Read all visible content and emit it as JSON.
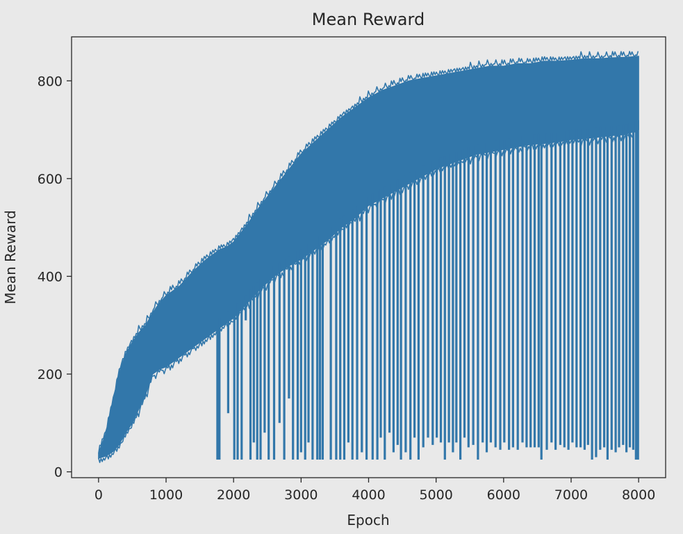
{
  "chart_data": {
    "type": "line",
    "title": "Mean Reward",
    "xlabel": "Epoch",
    "ylabel": "Mean Reward",
    "xlim": [
      -400,
      8400
    ],
    "ylim": [
      -12,
      890
    ],
    "grid": false,
    "legend": "none",
    "xticks": [
      0,
      1000,
      2000,
      3000,
      4000,
      5000,
      6000,
      7000,
      8000
    ],
    "yticks": [
      0,
      200,
      400,
      600,
      800
    ],
    "series": [
      {
        "color": "#3277aa",
        "x": [
          0,
          100,
          200,
          300,
          400,
          500,
          600,
          700,
          800,
          900,
          1000,
          1200,
          1400,
          1600,
          1700,
          1800,
          1900,
          2000,
          2200,
          2400,
          2600,
          2800,
          3000,
          3200,
          3400,
          3600,
          3800,
          4000,
          4200,
          4400,
          4600,
          4800,
          5000,
          5200,
          5400,
          5600,
          5800,
          6000,
          6200,
          6400,
          6600,
          6800,
          7000,
          7200,
          7400,
          7600,
          7800,
          8000
        ],
        "upper": [
          38,
          75,
          135,
          200,
          240,
          265,
          285,
          300,
          325,
          345,
          360,
          380,
          410,
          435,
          445,
          455,
          460,
          470,
          505,
          545,
          580,
          615,
          650,
          675,
          700,
          725,
          745,
          765,
          780,
          790,
          800,
          805,
          810,
          815,
          820,
          825,
          830,
          830,
          835,
          835,
          840,
          840,
          842,
          845,
          845,
          847,
          848,
          850
        ],
        "lower": [
          28,
          32,
          40,
          55,
          80,
          100,
          130,
          160,
          200,
          210,
          215,
          235,
          255,
          275,
          285,
          295,
          305,
          315,
          345,
          375,
          400,
          420,
          435,
          455,
          475,
          500,
          520,
          545,
          560,
          575,
          590,
          605,
          620,
          630,
          640,
          650,
          655,
          660,
          665,
          670,
          672,
          675,
          680,
          682,
          685,
          688,
          690,
          700
        ],
        "drops": [
          [
            1760,
            25
          ],
          [
            1790,
            25
          ],
          [
            1920,
            120
          ],
          [
            2010,
            25
          ],
          [
            2060,
            25
          ],
          [
            2120,
            25
          ],
          [
            2180,
            310
          ],
          [
            2250,
            25
          ],
          [
            2300,
            60
          ],
          [
            2350,
            25
          ],
          [
            2400,
            25
          ],
          [
            2460,
            80
          ],
          [
            2520,
            25
          ],
          [
            2600,
            25
          ],
          [
            2680,
            100
          ],
          [
            2750,
            25
          ],
          [
            2820,
            150
          ],
          [
            2880,
            25
          ],
          [
            2950,
            25
          ],
          [
            3000,
            40
          ],
          [
            3060,
            25
          ],
          [
            3110,
            60
          ],
          [
            3170,
            25
          ],
          [
            3240,
            25
          ],
          [
            3280,
            25
          ],
          [
            3320,
            25
          ],
          [
            3440,
            25
          ],
          [
            3520,
            25
          ],
          [
            3580,
            25
          ],
          [
            3640,
            25
          ],
          [
            3700,
            60
          ],
          [
            3760,
            25
          ],
          [
            3830,
            25
          ],
          [
            3900,
            40
          ],
          [
            3970,
            25
          ],
          [
            4060,
            25
          ],
          [
            4130,
            25
          ],
          [
            4180,
            70
          ],
          [
            4240,
            25
          ],
          [
            4310,
            80
          ],
          [
            4370,
            40
          ],
          [
            4430,
            55
          ],
          [
            4480,
            25
          ],
          [
            4550,
            40
          ],
          [
            4620,
            25
          ],
          [
            4680,
            70
          ],
          [
            4740,
            25
          ],
          [
            4810,
            50
          ],
          [
            4880,
            70
          ],
          [
            4950,
            55
          ],
          [
            5010,
            70
          ],
          [
            5070,
            60
          ],
          [
            5130,
            25
          ],
          [
            5190,
            60
          ],
          [
            5250,
            40
          ],
          [
            5300,
            60
          ],
          [
            5360,
            25
          ],
          [
            5420,
            70
          ],
          [
            5480,
            50
          ],
          [
            5550,
            55
          ],
          [
            5620,
            25
          ],
          [
            5690,
            60
          ],
          [
            5750,
            40
          ],
          [
            5810,
            60
          ],
          [
            5880,
            50
          ],
          [
            5950,
            45
          ],
          [
            6010,
            60
          ],
          [
            6080,
            45
          ],
          [
            6140,
            50
          ],
          [
            6210,
            45
          ],
          [
            6280,
            60
          ],
          [
            6340,
            50
          ],
          [
            6400,
            50
          ],
          [
            6460,
            50
          ],
          [
            6520,
            50
          ],
          [
            6560,
            25
          ],
          [
            6640,
            45
          ],
          [
            6710,
            60
          ],
          [
            6770,
            45
          ],
          [
            6840,
            55
          ],
          [
            6900,
            50
          ],
          [
            6960,
            45
          ],
          [
            7020,
            60
          ],
          [
            7080,
            50
          ],
          [
            7140,
            50
          ],
          [
            7200,
            45
          ],
          [
            7250,
            55
          ],
          [
            7310,
            25
          ],
          [
            7370,
            30
          ],
          [
            7430,
            45
          ],
          [
            7490,
            50
          ],
          [
            7540,
            25
          ],
          [
            7600,
            45
          ],
          [
            7660,
            40
          ],
          [
            7710,
            50
          ],
          [
            7770,
            55
          ],
          [
            7820,
            40
          ],
          [
            7870,
            50
          ],
          [
            7920,
            45
          ],
          [
            7960,
            25
          ],
          [
            7990,
            25
          ]
        ]
      }
    ]
  }
}
